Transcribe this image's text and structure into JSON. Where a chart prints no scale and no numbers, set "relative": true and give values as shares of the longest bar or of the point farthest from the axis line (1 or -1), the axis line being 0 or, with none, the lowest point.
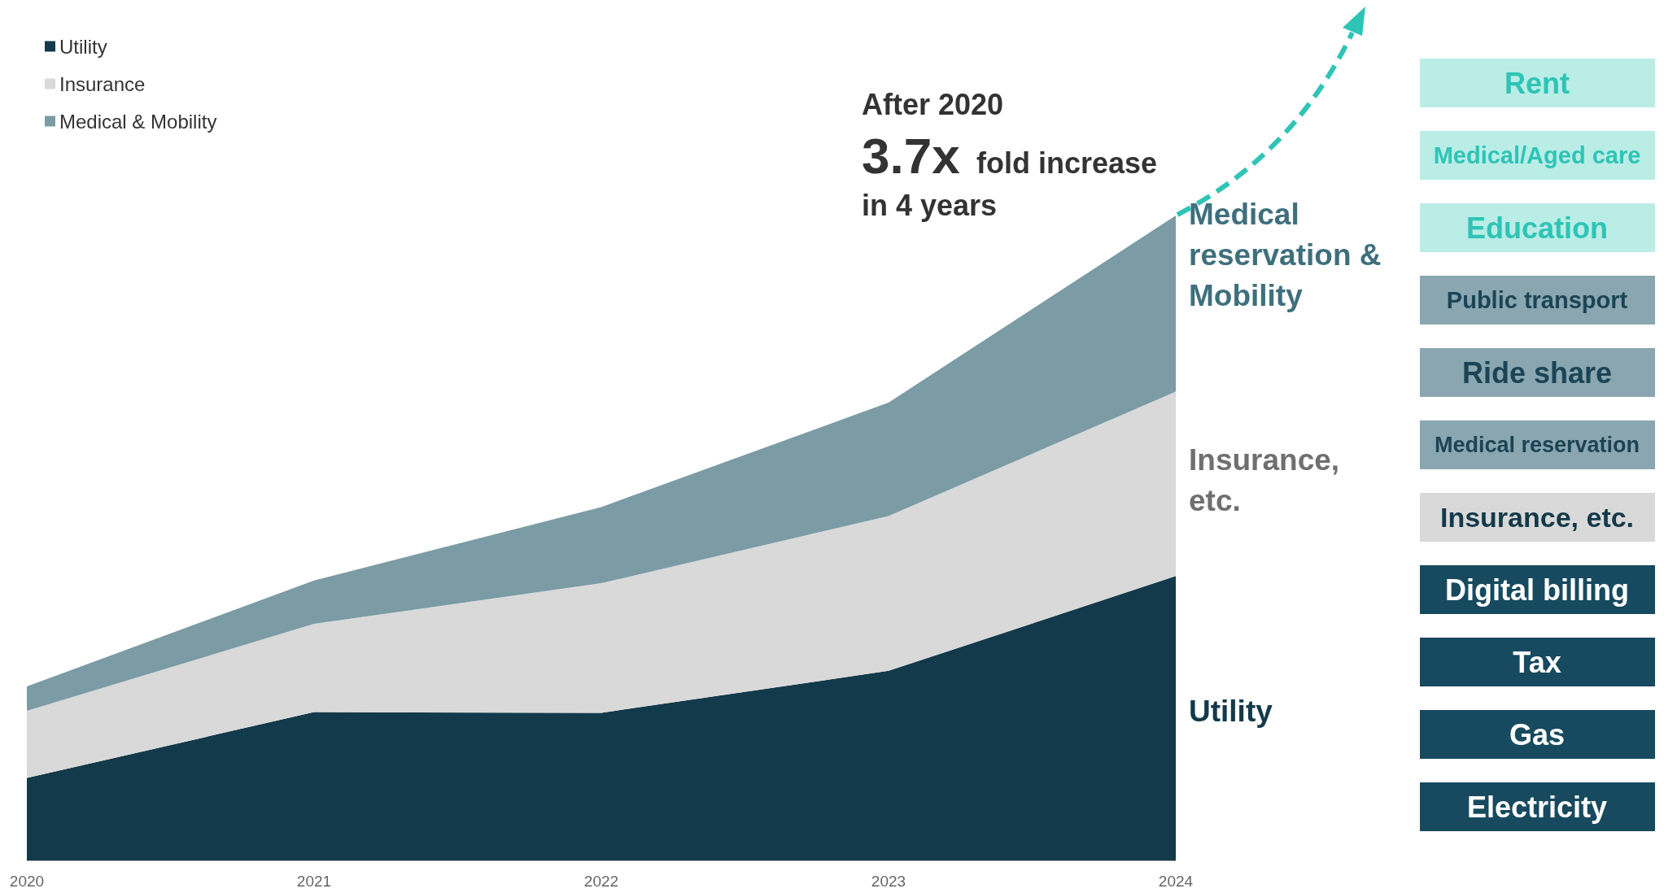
{
  "chart_data": {
    "type": "area",
    "stacked": true,
    "relative": true,
    "categories": [
      "2020",
      "2021",
      "2022",
      "2023",
      "2024"
    ],
    "series": [
      {
        "name": "Utility",
        "color": "#133a4a",
        "values": [
          0.128,
          0.23,
          0.229,
          0.294,
          0.441
        ]
      },
      {
        "name": "Insurance",
        "color": "#d9d9d9",
        "values": [
          0.104,
          0.137,
          0.201,
          0.24,
          0.286
        ]
      },
      {
        "name": "Medical & Mobility",
        "color": "#7b9ba5",
        "values": [
          0.038,
          0.067,
          0.118,
          0.176,
          0.273
        ]
      }
    ],
    "legend": "top left",
    "grid": false,
    "annotations": [
      "After 2020",
      "3.7x",
      "fold increase",
      "in 4 years",
      "Medical reservation & Mobility",
      "Insurance, etc.",
      "Utility",
      "Rent",
      "Medical/Aged care",
      "Education",
      "Public transport",
      "Ride share",
      "Medical reservation",
      "Insurance, etc.",
      "Digital billing",
      "Tax",
      "Gas",
      "Electricity"
    ]
  }
}
